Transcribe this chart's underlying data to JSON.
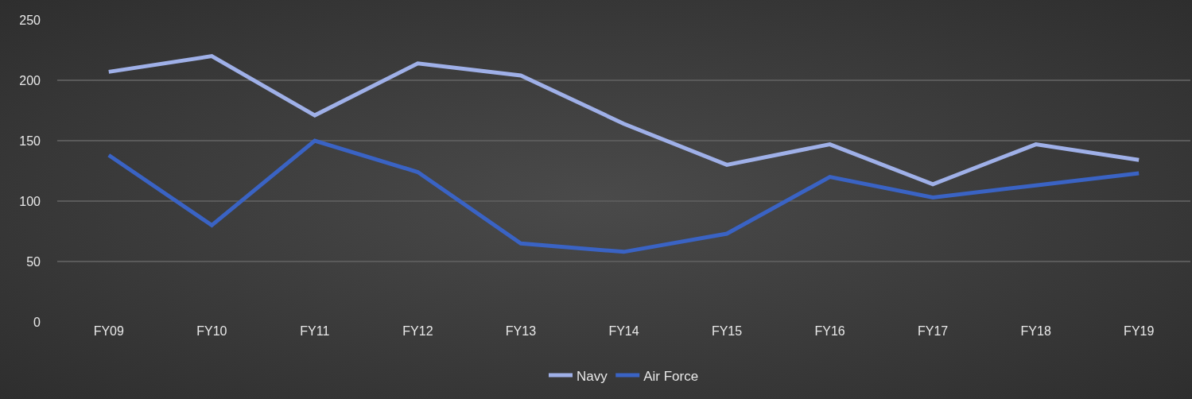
{
  "chart_data": {
    "type": "line",
    "categories": [
      "FY09",
      "FY10",
      "FY11",
      "FY12",
      "FY13",
      "FY14",
      "FY15",
      "FY16",
      "FY17",
      "FY18",
      "FY19"
    ],
    "series": [
      {
        "name": "Navy",
        "color": "#9fb0e8",
        "values": [
          207,
          220,
          171,
          214,
          204,
          164,
          130,
          147,
          114,
          147,
          134
        ]
      },
      {
        "name": "Air Force",
        "color": "#3a63c4",
        "values": [
          138,
          80,
          150,
          124,
          65,
          58,
          73,
          120,
          103,
          113,
          123
        ]
      }
    ],
    "ylim": [
      0,
      250
    ],
    "yticks": [
      0,
      50,
      100,
      150,
      200,
      250
    ],
    "grid": "y",
    "legend": "bottom",
    "marker": "none",
    "line_style": "solid"
  }
}
